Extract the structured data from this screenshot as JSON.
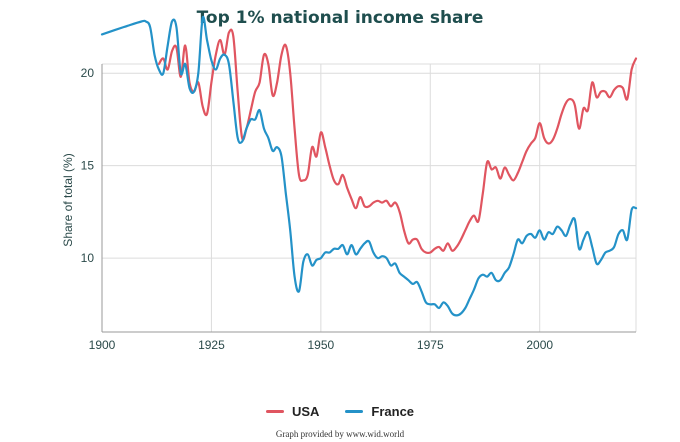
{
  "chart_data": {
    "type": "line",
    "title": "Top 1% national income share",
    "xlabel": "",
    "ylabel": "Share of total (%)",
    "xlim": [
      1900,
      2022
    ],
    "ylim": [
      6,
      20.5
    ],
    "x_ticks": [
      1900,
      1925,
      1950,
      1975,
      2000
    ],
    "y_ticks": [
      10,
      15,
      20
    ],
    "grid": true,
    "legend_position": "bottom",
    "series": [
      {
        "name": "USA",
        "color": "#e05560",
        "points": [
          [
            1913,
            20.5
          ],
          [
            1914,
            20.8
          ],
          [
            1915,
            20.2
          ],
          [
            1916,
            21.2
          ],
          [
            1917,
            21.4
          ],
          [
            1918,
            19.8
          ],
          [
            1919,
            21.5
          ],
          [
            1920,
            19.5
          ],
          [
            1921,
            19.0
          ],
          [
            1922,
            19.5
          ],
          [
            1923,
            18.2
          ],
          [
            1924,
            17.8
          ],
          [
            1925,
            19.5
          ],
          [
            1926,
            21.0
          ],
          [
            1927,
            21.8
          ],
          [
            1928,
            21.0
          ],
          [
            1929,
            22.2
          ],
          [
            1930,
            22.0
          ],
          [
            1931,
            19.0
          ],
          [
            1932,
            16.5
          ],
          [
            1933,
            17.0
          ],
          [
            1934,
            18.0
          ],
          [
            1935,
            19.0
          ],
          [
            1936,
            19.5
          ],
          [
            1937,
            21.0
          ],
          [
            1938,
            20.5
          ],
          [
            1939,
            18.8
          ],
          [
            1940,
            19.5
          ],
          [
            1941,
            21.0
          ],
          [
            1942,
            21.5
          ],
          [
            1943,
            20.0
          ],
          [
            1944,
            17.0
          ],
          [
            1945,
            14.5
          ],
          [
            1946,
            14.2
          ],
          [
            1947,
            14.5
          ],
          [
            1948,
            16.0
          ],
          [
            1949,
            15.5
          ],
          [
            1950,
            16.8
          ],
          [
            1951,
            16.0
          ],
          [
            1952,
            15.0
          ],
          [
            1953,
            14.2
          ],
          [
            1954,
            14.0
          ],
          [
            1955,
            14.5
          ],
          [
            1956,
            13.8
          ],
          [
            1957,
            13.2
          ],
          [
            1958,
            12.7
          ],
          [
            1959,
            13.3
          ],
          [
            1960,
            12.8
          ],
          [
            1961,
            12.8
          ],
          [
            1962,
            13.0
          ],
          [
            1963,
            13.1
          ],
          [
            1964,
            13.0
          ],
          [
            1965,
            13.1
          ],
          [
            1966,
            12.8
          ],
          [
            1967,
            13.0
          ],
          [
            1968,
            12.5
          ],
          [
            1969,
            11.5
          ],
          [
            1970,
            10.8
          ],
          [
            1971,
            11.0
          ],
          [
            1972,
            11.0
          ],
          [
            1973,
            10.5
          ],
          [
            1974,
            10.3
          ],
          [
            1975,
            10.3
          ],
          [
            1976,
            10.5
          ],
          [
            1977,
            10.6
          ],
          [
            1978,
            10.4
          ],
          [
            1979,
            10.8
          ],
          [
            1980,
            10.4
          ],
          [
            1981,
            10.6
          ],
          [
            1982,
            11.0
          ],
          [
            1983,
            11.5
          ],
          [
            1984,
            12.0
          ],
          [
            1985,
            12.3
          ],
          [
            1986,
            12.0
          ],
          [
            1987,
            13.5
          ],
          [
            1988,
            15.2
          ],
          [
            1989,
            14.8
          ],
          [
            1990,
            14.9
          ],
          [
            1991,
            14.3
          ],
          [
            1992,
            14.9
          ],
          [
            1993,
            14.5
          ],
          [
            1994,
            14.2
          ],
          [
            1995,
            14.6
          ],
          [
            1996,
            15.2
          ],
          [
            1997,
            15.8
          ],
          [
            1998,
            16.2
          ],
          [
            1999,
            16.5
          ],
          [
            2000,
            17.3
          ],
          [
            2001,
            16.5
          ],
          [
            2002,
            16.2
          ],
          [
            2003,
            16.4
          ],
          [
            2004,
            17.0
          ],
          [
            2005,
            17.8
          ],
          [
            2006,
            18.4
          ],
          [
            2007,
            18.6
          ],
          [
            2008,
            18.3
          ],
          [
            2009,
            17.0
          ],
          [
            2010,
            18.1
          ],
          [
            2011,
            18.0
          ],
          [
            2012,
            19.5
          ],
          [
            2013,
            18.7
          ],
          [
            2014,
            19.0
          ],
          [
            2015,
            19.0
          ],
          [
            2016,
            18.7
          ],
          [
            2017,
            19.1
          ],
          [
            2018,
            19.3
          ],
          [
            2019,
            19.2
          ],
          [
            2020,
            18.6
          ],
          [
            2021,
            20.2
          ],
          [
            2022,
            20.8
          ]
        ]
      },
      {
        "name": "France",
        "color": "#2492c8",
        "points": [
          [
            1900,
            22.1
          ],
          [
            1905,
            22.5
          ],
          [
            1909,
            22.8
          ],
          [
            1910,
            22.8
          ],
          [
            1911,
            22.5
          ],
          [
            1912,
            21.0
          ],
          [
            1913,
            20.2
          ],
          [
            1914,
            20.0
          ],
          [
            1915,
            21.5
          ],
          [
            1916,
            22.8
          ],
          [
            1917,
            22.5
          ],
          [
            1918,
            20.0
          ],
          [
            1919,
            20.5
          ],
          [
            1920,
            19.2
          ],
          [
            1921,
            19.0
          ],
          [
            1922,
            20.0
          ],
          [
            1923,
            23.0
          ],
          [
            1924,
            21.8
          ],
          [
            1925,
            20.7
          ],
          [
            1926,
            20.2
          ],
          [
            1927,
            20.8
          ],
          [
            1928,
            21.0
          ],
          [
            1929,
            20.5
          ],
          [
            1930,
            18.5
          ],
          [
            1931,
            16.5
          ],
          [
            1932,
            16.3
          ],
          [
            1933,
            17.0
          ],
          [
            1934,
            17.5
          ],
          [
            1935,
            17.5
          ],
          [
            1936,
            18.0
          ],
          [
            1937,
            17.0
          ],
          [
            1938,
            16.5
          ],
          [
            1939,
            15.8
          ],
          [
            1940,
            16.0
          ],
          [
            1941,
            15.5
          ],
          [
            1942,
            13.5
          ],
          [
            1943,
            11.5
          ],
          [
            1944,
            9.0
          ],
          [
            1945,
            8.2
          ],
          [
            1946,
            9.8
          ],
          [
            1947,
            10.2
          ],
          [
            1948,
            9.6
          ],
          [
            1949,
            9.9
          ],
          [
            1950,
            10.0
          ],
          [
            1951,
            10.3
          ],
          [
            1952,
            10.3
          ],
          [
            1953,
            10.5
          ],
          [
            1954,
            10.5
          ],
          [
            1955,
            10.7
          ],
          [
            1956,
            10.2
          ],
          [
            1957,
            10.7
          ],
          [
            1958,
            10.2
          ],
          [
            1959,
            10.5
          ],
          [
            1960,
            10.8
          ],
          [
            1961,
            10.9
          ],
          [
            1962,
            10.3
          ],
          [
            1963,
            10.0
          ],
          [
            1964,
            10.1
          ],
          [
            1965,
            10.0
          ],
          [
            1966,
            9.6
          ],
          [
            1967,
            9.7
          ],
          [
            1968,
            9.2
          ],
          [
            1969,
            9.0
          ],
          [
            1970,
            8.8
          ],
          [
            1971,
            8.6
          ],
          [
            1972,
            8.7
          ],
          [
            1973,
            8.2
          ],
          [
            1974,
            7.6
          ],
          [
            1975,
            7.5
          ],
          [
            1976,
            7.5
          ],
          [
            1977,
            7.3
          ],
          [
            1978,
            7.6
          ],
          [
            1979,
            7.4
          ],
          [
            1980,
            7.0
          ],
          [
            1981,
            6.9
          ],
          [
            1982,
            7.0
          ],
          [
            1983,
            7.3
          ],
          [
            1984,
            7.8
          ],
          [
            1985,
            8.3
          ],
          [
            1986,
            8.9
          ],
          [
            1987,
            9.1
          ],
          [
            1988,
            9.0
          ],
          [
            1989,
            9.2
          ],
          [
            1990,
            8.8
          ],
          [
            1991,
            8.8
          ],
          [
            1992,
            9.2
          ],
          [
            1993,
            9.5
          ],
          [
            1994,
            10.2
          ],
          [
            1995,
            11.0
          ],
          [
            1996,
            10.8
          ],
          [
            1997,
            11.2
          ],
          [
            1998,
            11.3
          ],
          [
            1999,
            11.1
          ],
          [
            2000,
            11.5
          ],
          [
            2001,
            11.0
          ],
          [
            2002,
            11.4
          ],
          [
            2003,
            11.3
          ],
          [
            2004,
            11.7
          ],
          [
            2005,
            11.5
          ],
          [
            2006,
            11.2
          ],
          [
            2007,
            11.8
          ],
          [
            2008,
            12.1
          ],
          [
            2009,
            10.5
          ],
          [
            2010,
            11.0
          ],
          [
            2011,
            11.4
          ],
          [
            2012,
            10.6
          ],
          [
            2013,
            9.7
          ],
          [
            2014,
            9.9
          ],
          [
            2015,
            10.3
          ],
          [
            2016,
            10.4
          ],
          [
            2017,
            10.6
          ],
          [
            2018,
            11.3
          ],
          [
            2019,
            11.5
          ],
          [
            2020,
            11.0
          ],
          [
            2021,
            12.6
          ],
          [
            2022,
            12.7
          ]
        ]
      }
    ]
  },
  "credit": "Graph provided by www.wid.world"
}
